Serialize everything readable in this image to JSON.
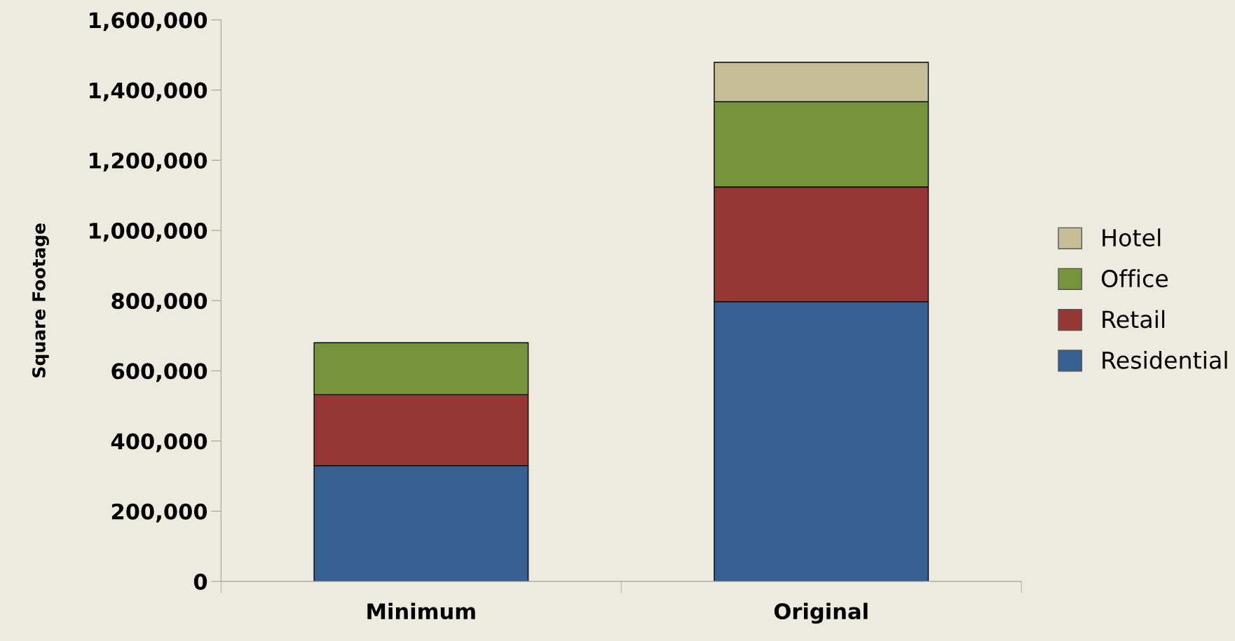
{
  "chart_data": {
    "type": "bar",
    "stacked": true,
    "ylabel": "Square Footage",
    "categories": [
      "Minimum",
      "Original"
    ],
    "series": [
      {
        "name": "Residential",
        "color": "#366092",
        "values": [
          330000,
          797000
        ]
      },
      {
        "name": "Retail",
        "color": "#953735",
        "values": [
          202000,
          327000
        ]
      },
      {
        "name": "Office",
        "color": "#77933c",
        "values": [
          148000,
          243000
        ]
      },
      {
        "name": "Hotel",
        "color": "#c4bd97",
        "values": [
          0,
          112000
        ]
      }
    ],
    "ylim": [
      0,
      1600000
    ],
    "yticks": [
      {
        "value": 0,
        "label": "0"
      },
      {
        "value": 200000,
        "label": "200,000"
      },
      {
        "value": 400000,
        "label": "400,000"
      },
      {
        "value": 600000,
        "label": "600,000"
      },
      {
        "value": 800000,
        "label": "800,000"
      },
      {
        "value": 1000000,
        "label": "1,000,000"
      },
      {
        "value": 1200000,
        "label": "1,200,000"
      },
      {
        "value": 1400000,
        "label": "1,400,000"
      },
      {
        "value": 1600000,
        "label": "1,600,000"
      }
    ],
    "grid": false,
    "legend": "right"
  }
}
